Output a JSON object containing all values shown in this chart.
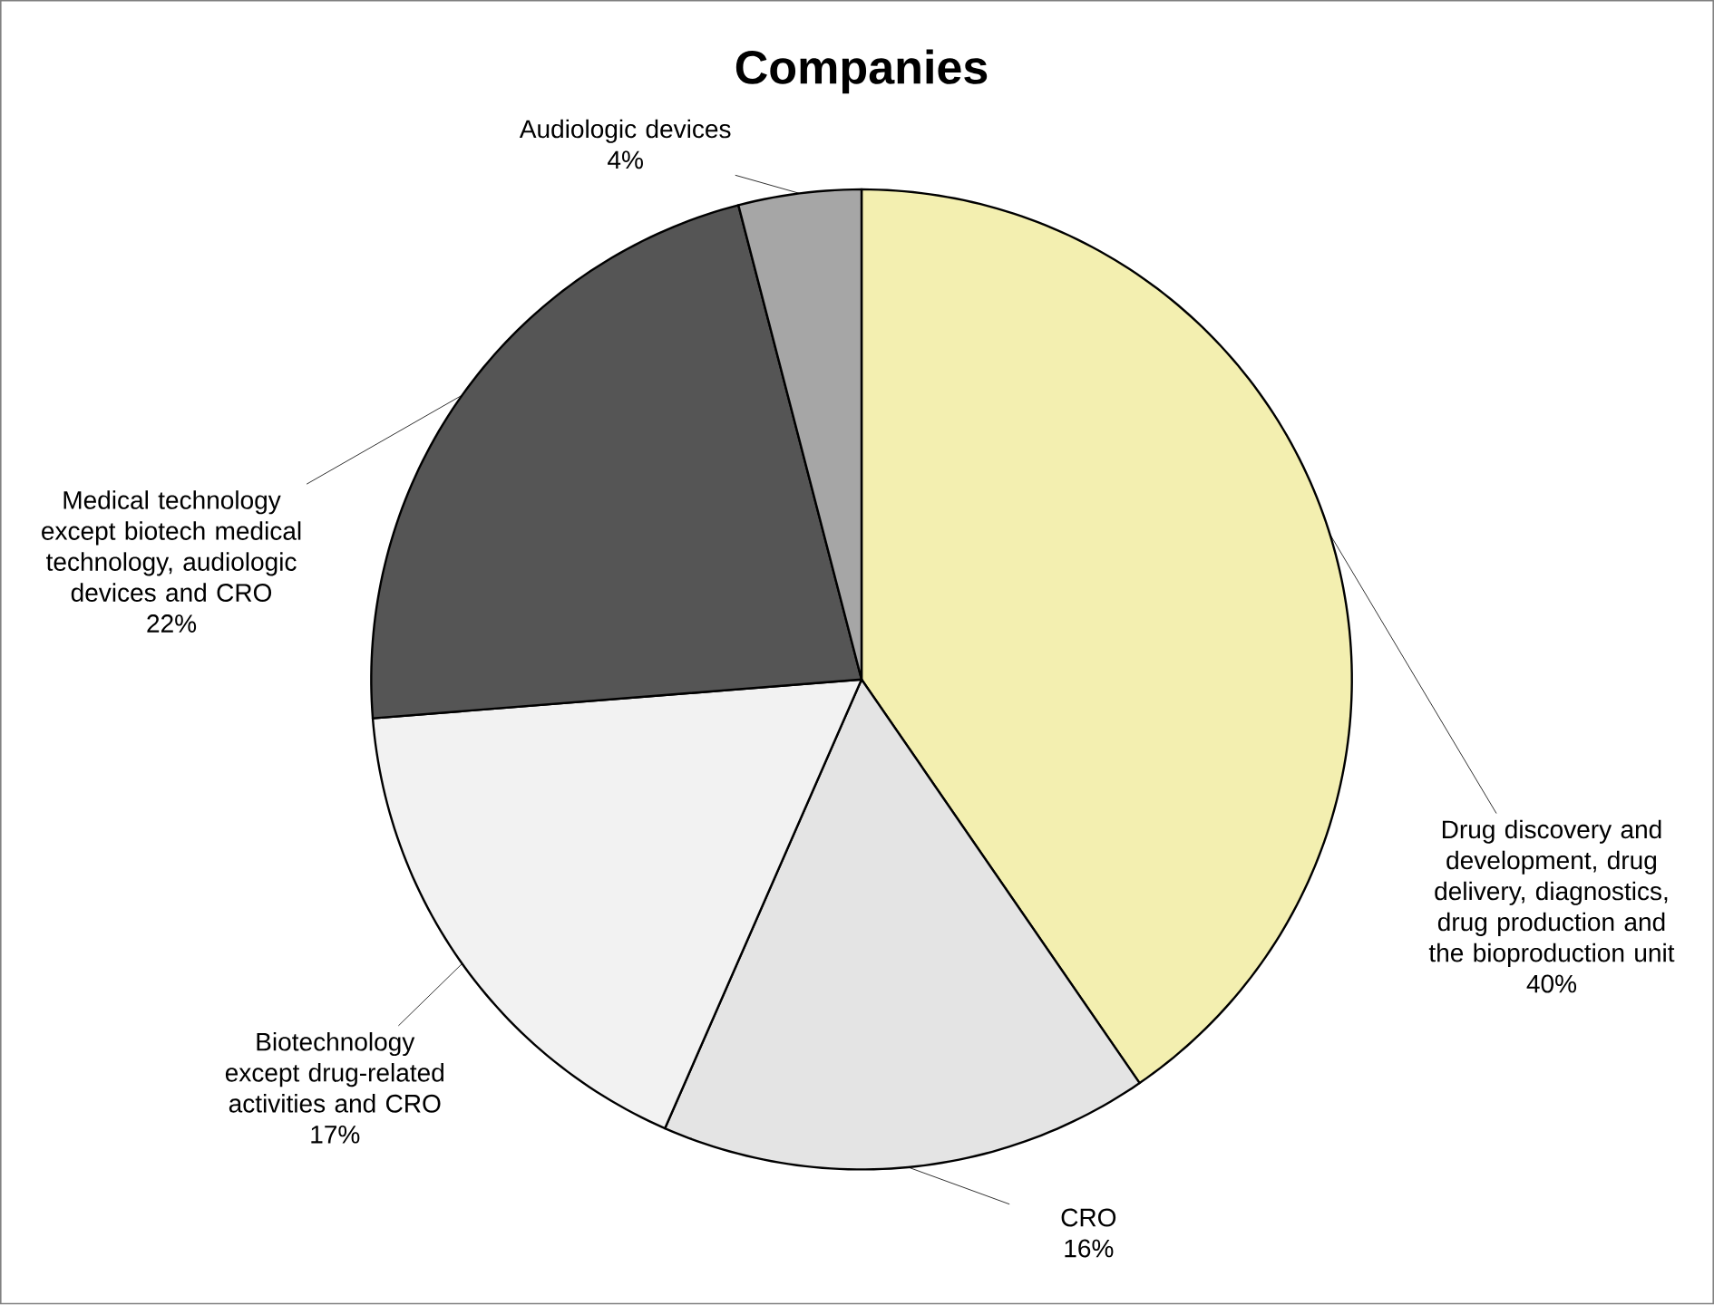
{
  "chart_data": {
    "type": "pie",
    "title": "Companies",
    "categories": [
      "Drug discovery and development, drug delivery, diagnostics, drug production and the bioproduction unit",
      "CRO",
      "Biotechnology except drug-related activities and CRO",
      "Medical technology except biotech medical technology, audiologic devices and CRO",
      "Audiologic devices"
    ],
    "values": [
      40,
      16,
      17,
      22,
      4
    ],
    "value_labels": [
      "40%",
      "16%",
      "17%",
      "22%",
      "4%"
    ],
    "colors": [
      "#f3efb0",
      "#e4e4e4",
      "#f2f2f2",
      "#555555",
      "#a6a6a6"
    ]
  }
}
